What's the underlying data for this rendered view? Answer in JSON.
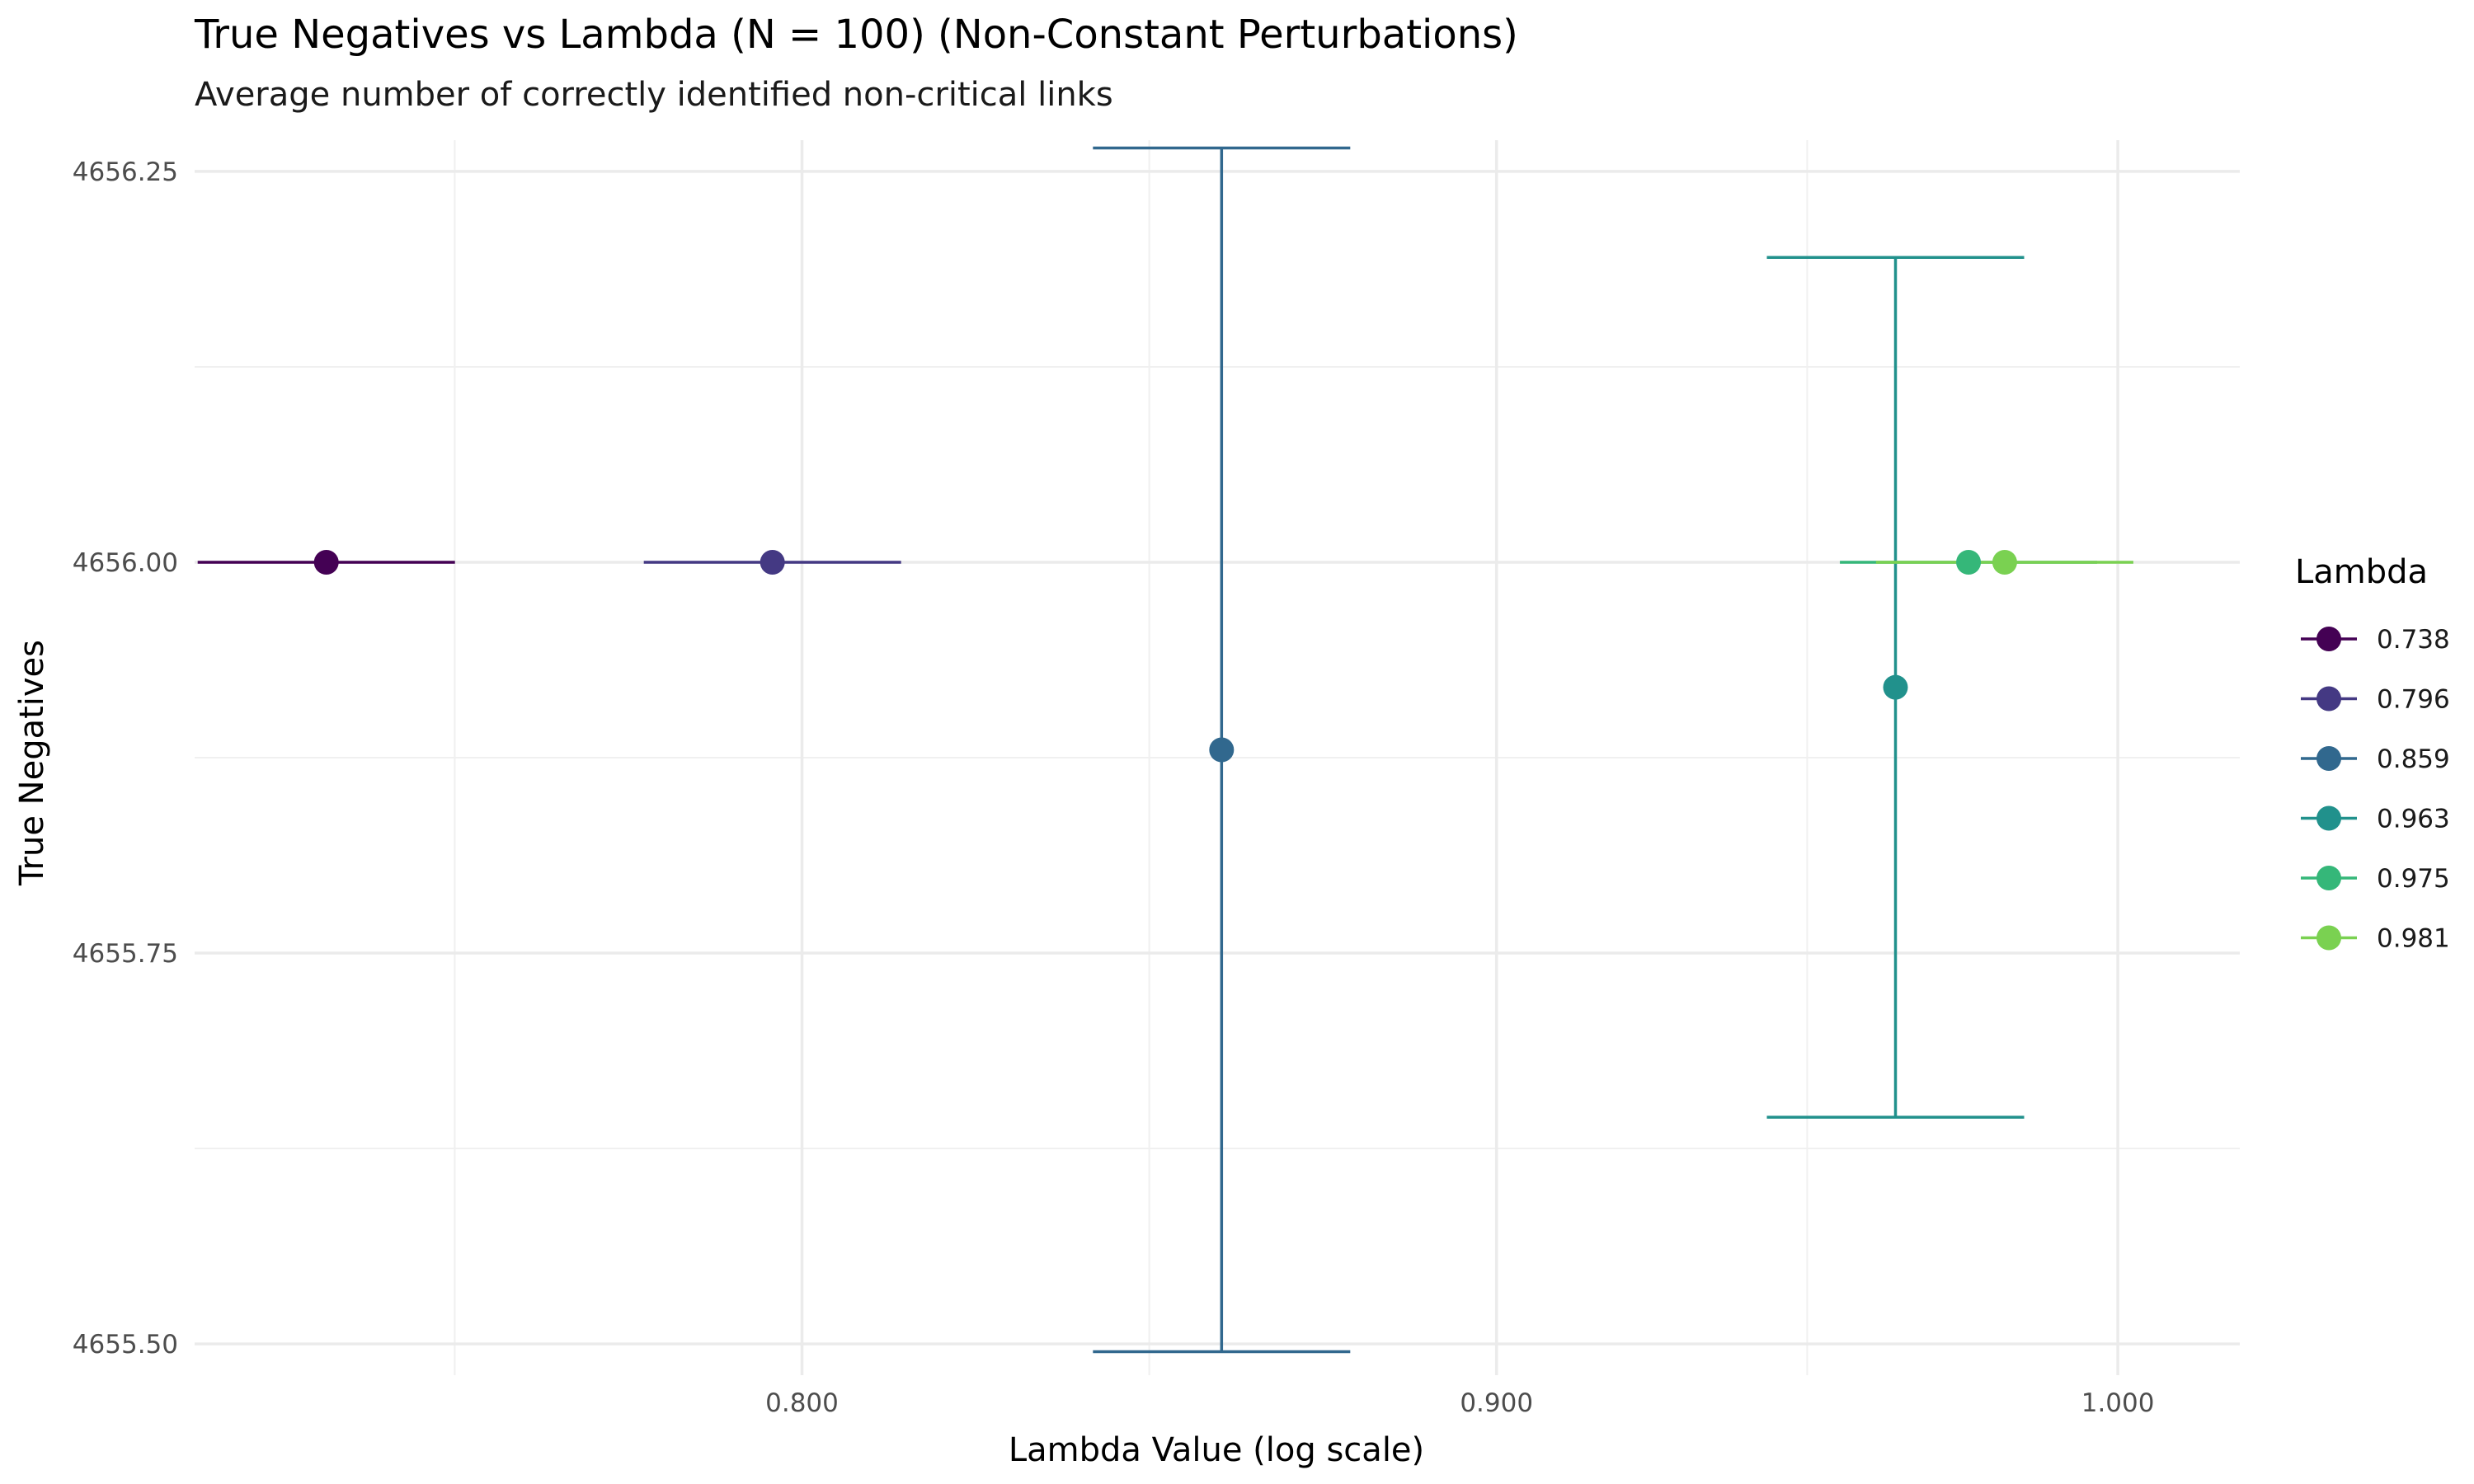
{
  "chart_data": {
    "type": "scatter",
    "title": "True Negatives vs Lambda (N = 100) (Non-Constant Perturbations)",
    "subtitle": "Average number of correctly identified non-critical links",
    "xlabel": "Lambda Value (log scale)",
    "ylabel": "True Negatives",
    "x_scale": "log",
    "xlim": [
      0.7217,
      1.0209
    ],
    "ylim": [
      4655.48,
      4656.27
    ],
    "x_ticks": [
      0.8,
      0.9,
      1.0
    ],
    "x_tick_labels": [
      "0.800",
      "0.900",
      "1.000"
    ],
    "y_ticks": [
      4655.5,
      4655.75,
      4656.0,
      4656.25
    ],
    "y_tick_labels": [
      "4655.50",
      "4655.75",
      "4656.00",
      "4656.25"
    ],
    "grid": true,
    "legend": {
      "title": "Lambda",
      "position": "right"
    },
    "series": [
      {
        "name": "0.738",
        "x": 0.738,
        "y": 4656.0,
        "ymin": 4656.0,
        "ymax": 4656.0,
        "color": "#440154"
      },
      {
        "name": "0.796",
        "x": 0.796,
        "y": 4656.0,
        "ymin": 4656.0,
        "ymax": 4656.0,
        "color": "#443983"
      },
      {
        "name": "0.859",
        "x": 0.859,
        "y": 4655.88,
        "ymin": 4655.495,
        "ymax": 4656.265,
        "color": "#31688e"
      },
      {
        "name": "0.963",
        "x": 0.963,
        "y": 4655.92,
        "ymin": 4655.645,
        "ymax": 4656.195,
        "color": "#21918c"
      },
      {
        "name": "0.975",
        "x": 0.975,
        "y": 4656.0,
        "ymin": 4656.0,
        "ymax": 4656.0,
        "color": "#35b779"
      },
      {
        "name": "0.981",
        "x": 0.981,
        "y": 4656.0,
        "ymin": 4656.0,
        "ymax": 4656.0,
        "color": "#7ad151"
      }
    ]
  }
}
